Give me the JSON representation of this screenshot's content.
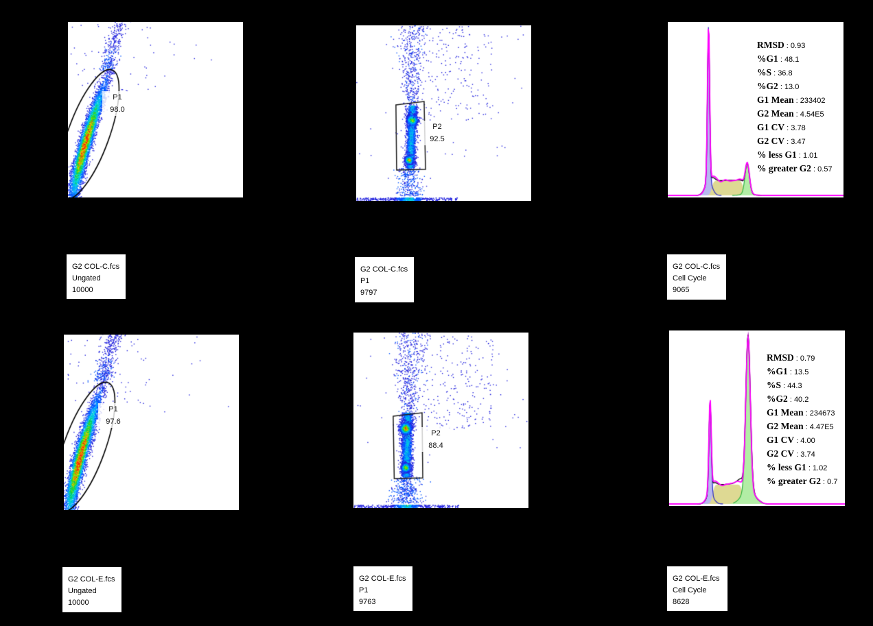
{
  "separator": " : ",
  "colors": {
    "background": "#000000",
    "panel_bg": "#ffffff",
    "gate_line": "#000000",
    "density_palette": [
      [
        0,
        "#2222dd"
      ],
      [
        0.12,
        "#0055ff"
      ],
      [
        0.28,
        "#00a0ff"
      ],
      [
        0.42,
        "#00d4d4"
      ],
      [
        0.56,
        "#00cc55"
      ],
      [
        0.68,
        "#66dd00"
      ],
      [
        0.79,
        "#ccdd00"
      ],
      [
        0.87,
        "#ffb300"
      ],
      [
        0.93,
        "#ff6600"
      ],
      [
        0.975,
        "#ff1a00"
      ]
    ],
    "hist": {
      "g1_fill": "#b7b9ef",
      "g1_line": "#2a2ac8",
      "s_fill": "#ded993",
      "g2_fill": "#b2eda5",
      "g2_line": "#2bb33c",
      "model": "#ff00ff",
      "data": "#000000"
    }
  },
  "chart_data": [
    {
      "id": "c-ungated",
      "type": "scatter",
      "plot_style": "pseudocolor-density",
      "file": "G2 COL-C.fcs",
      "population": "Ungated",
      "events": "10000",
      "gate": {
        "shape": "ellipse",
        "label": "P1",
        "percent": "98.0"
      },
      "axes_visible": false,
      "shape_params": {
        "seed": 101,
        "ridge": {
          "x0": 0.03,
          "y0": 0.0,
          "x1": 0.235,
          "y1": 0.73,
          "sigma": 0.02,
          "n": 5200,
          "tc": 0.42,
          "ts": 0.26,
          "bend": 1.3
        },
        "tail": {
          "x0": 0.215,
          "y0": 0.73,
          "x1": 0.305,
          "y1": 1.03,
          "sigma": 0.024,
          "n": 300
        },
        "sparse": {
          "n": 55
        },
        "gate_ellipse": {
          "cx": 0.118,
          "cy": 0.64,
          "rx": 0.118,
          "ry": 0.39,
          "rot": 20
        }
      }
    },
    {
      "id": "c-p1",
      "type": "scatter",
      "plot_style": "pseudocolor-density",
      "file": "G2 COL-C.fcs",
      "population": "P1",
      "events": "9797",
      "gate": {
        "shape": "rectangle",
        "label": "P2",
        "percent": "92.5"
      },
      "axes_visible": false,
      "shape_params": {
        "seed": 303,
        "column": {
          "x": 0.307,
          "y0": 0.19,
          "y1": 0.545,
          "sigma": 0.014,
          "n": 2400,
          "slant": 0.012
        },
        "blobs": [
          {
            "x": 0.318,
            "y": 0.462,
            "s": 0.016,
            "n": 650,
            "hot": 0.8
          },
          {
            "x": 0.3,
            "y": 0.235,
            "s": 0.012,
            "n": 550,
            "hot": 1.0
          }
        ],
        "above": {
          "x": 0.315,
          "y0": 0.545,
          "y1": 1.0,
          "spread0": 0.018,
          "spread1": 0.05,
          "n": 380
        },
        "wide": {
          "x0": 0.26,
          "x1": 0.78,
          "y0": 0.45,
          "y1": 1.0,
          "n": 230
        },
        "below": {
          "x": 0.3,
          "y0": 0.03,
          "y1": 0.19,
          "spread": 0.028,
          "n": 300
        },
        "baseline": {
          "x0": 0.0,
          "x1": 0.58,
          "n": 520,
          "hot_x": 0.3
        },
        "sparse": {
          "n": 45
        },
        "gate_rect": [
          [
            0.227,
            0.453
          ],
          [
            0.388,
            0.434
          ],
          [
            0.396,
            0.82
          ],
          [
            0.231,
            0.824
          ]
        ]
      }
    },
    {
      "id": "c-cellcycle",
      "type": "area",
      "plot_style": "cell-cycle-fit",
      "file": "G2 COL-C.fcs",
      "population": "Cell Cycle",
      "events": "9065",
      "axes_visible": false,
      "stats": [
        {
          "label": "RMSD",
          "value": "0.93"
        },
        {
          "label": "%G1",
          "value": "48.1"
        },
        {
          "label": "%S",
          "value": "36.8"
        },
        {
          "label": "%G2",
          "value": "13.0"
        },
        {
          "label": "G1 Mean",
          "value": "233402"
        },
        {
          "label": "G2 Mean",
          "value": "4.54E5"
        },
        {
          "label": "G1 CV",
          "value": "3.78"
        },
        {
          "label": "G2 CV",
          "value": "3.47"
        },
        {
          "label": "% less G1",
          "value": "1.01"
        },
        {
          "label": "% greater G2",
          "value": "0.57"
        }
      ],
      "shape_params": {
        "seed": 404,
        "g1": {
          "m": 0.232,
          "s": 0.006,
          "h": 0.897,
          "pedh": 0.09,
          "peds": 3.4
        },
        "sph": {
          "a": 0.25,
          "b": 0.43,
          "h": 0.085,
          "e": 0.011
        },
        "g2": {
          "m": 0.452,
          "s": 0.0125,
          "h": 0.175,
          "pedh": 0.05,
          "peds": 2.6
        },
        "offsets": {
          "g1": 2.0,
          "g2": 1.0
        },
        "wobble": 2.2
      }
    },
    {
      "id": "e-ungated",
      "type": "scatter",
      "plot_style": "pseudocolor-density",
      "file": "G2 COL-E.fcs",
      "population": "Ungated",
      "events": "10000",
      "gate": {
        "shape": "ellipse",
        "label": "P1",
        "percent": "97.6"
      },
      "axes_visible": false,
      "shape_params": {
        "seed": 202,
        "ridge": {
          "x0": 0.03,
          "y0": 0.0,
          "x1": 0.225,
          "y1": 0.74,
          "sigma": 0.021,
          "n": 5200,
          "tc": 0.4,
          "ts": 0.27,
          "bend": 1.3
        },
        "tail": {
          "x0": 0.21,
          "y0": 0.74,
          "x1": 0.3,
          "y1": 1.03,
          "sigma": 0.026,
          "n": 380
        },
        "sparse": {
          "n": 70
        },
        "gate_ellipse": {
          "cx": 0.118,
          "cy": 0.64,
          "rx": 0.118,
          "ry": 0.39,
          "rot": 20
        }
      }
    },
    {
      "id": "e-p1",
      "type": "scatter",
      "plot_style": "pseudocolor-density",
      "file": "G2 COL-E.fcs",
      "population": "P1",
      "events": "9763",
      "gate": {
        "shape": "rectangle",
        "label": "P2",
        "percent": "88.4"
      },
      "axes_visible": false,
      "shape_params": {
        "seed": 606,
        "column": {
          "x": 0.3,
          "y0": 0.18,
          "y1": 0.545,
          "sigma": 0.016,
          "n": 2600,
          "slant": 0.008
        },
        "blobs": [
          {
            "x": 0.296,
            "y": 0.455,
            "s": 0.017,
            "n": 800,
            "hot": 1.0
          },
          {
            "x": 0.296,
            "y": 0.232,
            "s": 0.013,
            "n": 500,
            "hot": 0.9
          }
        ],
        "above": {
          "x": 0.31,
          "y0": 0.545,
          "y1": 1.0,
          "spread0": 0.02,
          "spread1": 0.06,
          "n": 420
        },
        "wide": {
          "x0": 0.26,
          "x1": 0.8,
          "y0": 0.45,
          "y1": 1.0,
          "n": 280
        },
        "below": {
          "x": 0.3,
          "y0": 0.03,
          "y1": 0.18,
          "spread": 0.03,
          "n": 380
        },
        "baseline": {
          "x0": 0.0,
          "x1": 0.6,
          "n": 480,
          "hot_x": 0.3
        },
        "sparse": {
          "n": 50
        },
        "gate_rect": [
          [
            0.227,
            0.477
          ],
          [
            0.392,
            0.457
          ],
          [
            0.396,
            0.828
          ],
          [
            0.233,
            0.832
          ]
        ]
      }
    },
    {
      "id": "e-cellcycle",
      "type": "area",
      "plot_style": "cell-cycle-fit",
      "file": "G2 COL-E.fcs",
      "population": "Cell Cycle",
      "events": "8628",
      "axes_visible": false,
      "stats": [
        {
          "label": "RMSD",
          "value": "0.79"
        },
        {
          "label": "%G1",
          "value": "13.5"
        },
        {
          "label": "%S",
          "value": "44.3"
        },
        {
          "label": "%G2",
          "value": "40.2"
        },
        {
          "label": "G1 Mean",
          "value": "234673"
        },
        {
          "label": "G2 Mean",
          "value": "4.47E5"
        },
        {
          "label": "G1 CV",
          "value": "4.00"
        },
        {
          "label": "G2 CV",
          "value": "3.74"
        },
        {
          "label": "% less G1",
          "value": "1.02"
        },
        {
          "label": "% greater G2",
          "value": "0.7"
        }
      ],
      "shape_params": {
        "seed": 707,
        "g1": {
          "m": 0.233,
          "s": 0.0065,
          "h": 0.535,
          "pedh": 0.1,
          "peds": 3.2
        },
        "sph": {
          "a": 0.247,
          "b": 0.418,
          "h": 0.112,
          "e": 0.011
        },
        "g2": {
          "m": 0.449,
          "s": 0.013,
          "h": 0.895,
          "pedh": 0.09,
          "peds": 2.8
        },
        "offsets": {
          "g1": 3.0,
          "g2": -3.5
        },
        "wobble": 3.8
      }
    }
  ]
}
